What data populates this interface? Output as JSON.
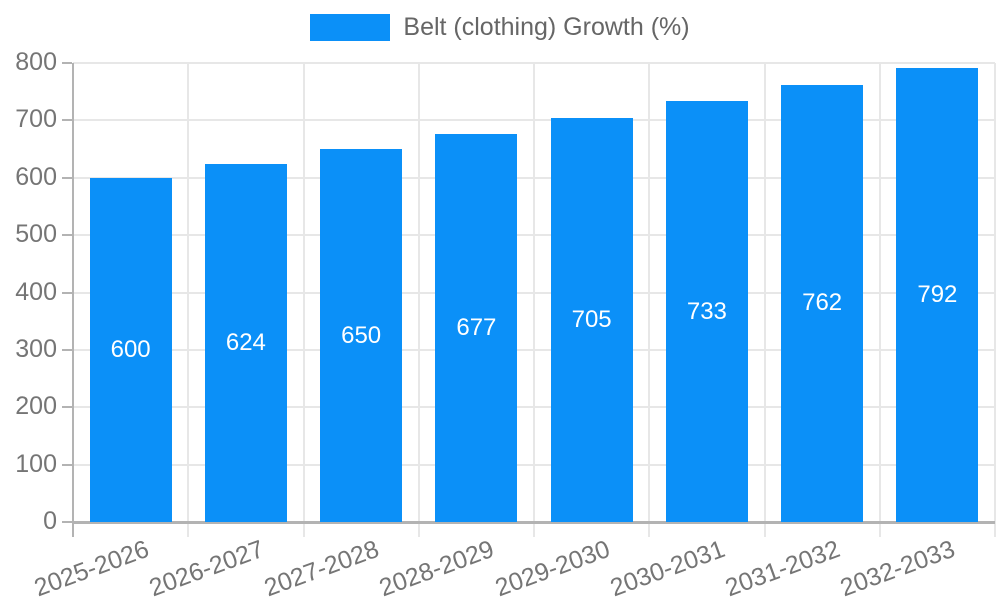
{
  "chart_data": {
    "type": "bar",
    "legend": "Belt (clothing) Growth (%)",
    "categories": [
      "2025-2026",
      "2026-2027",
      "2027-2028",
      "2028-2029",
      "2029-2030",
      "2030-2031",
      "2031-2032",
      "2032-2033"
    ],
    "values": [
      600,
      624,
      650,
      677,
      705,
      733,
      762,
      792
    ],
    "value_labels": [
      "600",
      "624",
      "650",
      "677",
      "705",
      "733",
      "762",
      "792"
    ],
    "xlabel": "",
    "ylabel": "",
    "ylim": [
      0,
      800
    ],
    "ytick_step": 100,
    "ytick_labels": [
      "0",
      "100",
      "200",
      "300",
      "400",
      "500",
      "600",
      "700",
      "800"
    ],
    "grid": "on",
    "legend_position": "top-center",
    "bar_value_label_position": "inside-middle",
    "colors": {
      "bar": "#0b90f8",
      "gridline": "#e7e7e7",
      "axis": "#b3b3b3",
      "tick_text": "#757575",
      "legend_text": "#666666",
      "bar_value_text": "#ffffff",
      "background": "#ffffff"
    }
  }
}
